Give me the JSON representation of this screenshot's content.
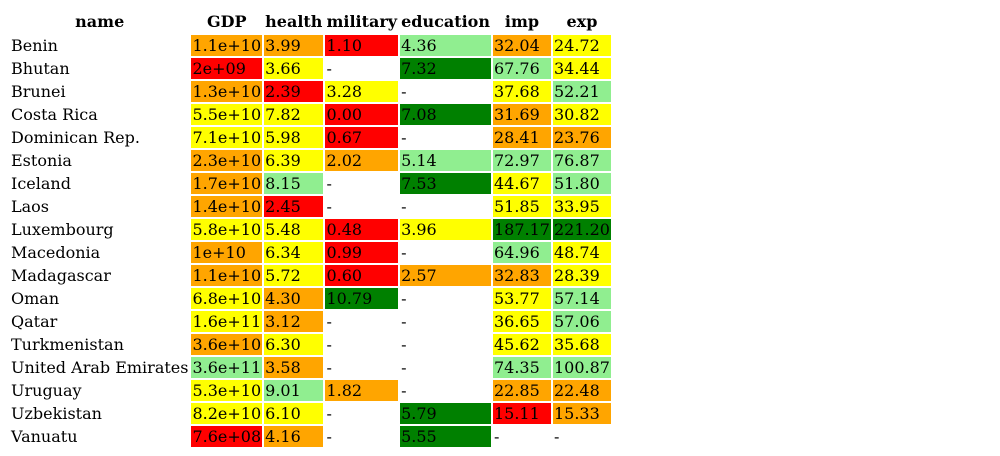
{
  "colors": {
    "red": "#ff0000",
    "orange": "#ffa500",
    "yellow": "#ffff00",
    "lightgreen": "#90ee90",
    "green": "#008000"
  },
  "columns": [
    "name",
    "GDP",
    "health",
    "military",
    "education",
    "imp",
    "exp"
  ],
  "rows": [
    {
      "name": "Benin",
      "cells": [
        [
          "1.1e+10",
          "orange"
        ],
        [
          "3.99",
          "orange"
        ],
        [
          "1.10",
          "red"
        ],
        [
          "4.36",
          "lightgreen"
        ],
        [
          "32.04",
          "orange"
        ],
        [
          "24.72",
          "yellow"
        ]
      ]
    },
    {
      "name": "Bhutan",
      "cells": [
        [
          "2e+09",
          "red"
        ],
        [
          "3.66",
          "yellow"
        ],
        [
          "-",
          "none"
        ],
        [
          "7.32",
          "green"
        ],
        [
          "67.76",
          "lightgreen"
        ],
        [
          "34.44",
          "yellow"
        ]
      ]
    },
    {
      "name": "Brunei",
      "cells": [
        [
          "1.3e+10",
          "orange"
        ],
        [
          "2.39",
          "red"
        ],
        [
          "3.28",
          "yellow"
        ],
        [
          "-",
          "none"
        ],
        [
          "37.68",
          "yellow"
        ],
        [
          "52.21",
          "lightgreen"
        ]
      ]
    },
    {
      "name": "Costa Rica",
      "cells": [
        [
          "5.5e+10",
          "yellow"
        ],
        [
          "7.82",
          "yellow"
        ],
        [
          "0.00",
          "red"
        ],
        [
          "7.08",
          "green"
        ],
        [
          "31.69",
          "orange"
        ],
        [
          "30.82",
          "yellow"
        ]
      ]
    },
    {
      "name": "Dominican Rep.",
      "cells": [
        [
          "7.1e+10",
          "yellow"
        ],
        [
          "5.98",
          "yellow"
        ],
        [
          "0.67",
          "red"
        ],
        [
          "-",
          "none"
        ],
        [
          "28.41",
          "orange"
        ],
        [
          "23.76",
          "orange"
        ]
      ]
    },
    {
      "name": "Estonia",
      "cells": [
        [
          "2.3e+10",
          "orange"
        ],
        [
          "6.39",
          "yellow"
        ],
        [
          "2.02",
          "orange"
        ],
        [
          "5.14",
          "lightgreen"
        ],
        [
          "72.97",
          "lightgreen"
        ],
        [
          "76.87",
          "lightgreen"
        ]
      ]
    },
    {
      "name": "Iceland",
      "cells": [
        [
          "1.7e+10",
          "orange"
        ],
        [
          "8.15",
          "lightgreen"
        ],
        [
          "-",
          "none"
        ],
        [
          "7.53",
          "green"
        ],
        [
          "44.67",
          "yellow"
        ],
        [
          "51.80",
          "lightgreen"
        ]
      ]
    },
    {
      "name": "Laos",
      "cells": [
        [
          "1.4e+10",
          "orange"
        ],
        [
          "2.45",
          "red"
        ],
        [
          "-",
          "none"
        ],
        [
          "-",
          "none"
        ],
        [
          "51.85",
          "yellow"
        ],
        [
          "33.95",
          "yellow"
        ]
      ]
    },
    {
      "name": "Luxembourg",
      "cells": [
        [
          "5.8e+10",
          "yellow"
        ],
        [
          "5.48",
          "yellow"
        ],
        [
          "0.48",
          "red"
        ],
        [
          "3.96",
          "yellow"
        ],
        [
          "187.17",
          "green"
        ],
        [
          "221.20",
          "green"
        ]
      ]
    },
    {
      "name": "Macedonia",
      "cells": [
        [
          "1e+10",
          "orange"
        ],
        [
          "6.34",
          "yellow"
        ],
        [
          "0.99",
          "red"
        ],
        [
          "-",
          "none"
        ],
        [
          "64.96",
          "lightgreen"
        ],
        [
          "48.74",
          "yellow"
        ]
      ]
    },
    {
      "name": "Madagascar",
      "cells": [
        [
          "1.1e+10",
          "orange"
        ],
        [
          "5.72",
          "yellow"
        ],
        [
          "0.60",
          "red"
        ],
        [
          "2.57",
          "orange"
        ],
        [
          "32.83",
          "orange"
        ],
        [
          "28.39",
          "yellow"
        ]
      ]
    },
    {
      "name": "Oman",
      "cells": [
        [
          "6.8e+10",
          "yellow"
        ],
        [
          "4.30",
          "orange"
        ],
        [
          "10.79",
          "green"
        ],
        [
          "-",
          "none"
        ],
        [
          "53.77",
          "yellow"
        ],
        [
          "57.14",
          "lightgreen"
        ]
      ]
    },
    {
      "name": "Qatar",
      "cells": [
        [
          "1.6e+11",
          "yellow"
        ],
        [
          "3.12",
          "orange"
        ],
        [
          "-",
          "none"
        ],
        [
          "-",
          "none"
        ],
        [
          "36.65",
          "yellow"
        ],
        [
          "57.06",
          "lightgreen"
        ]
      ]
    },
    {
      "name": "Turkmenistan",
      "cells": [
        [
          "3.6e+10",
          "orange"
        ],
        [
          "6.30",
          "yellow"
        ],
        [
          "-",
          "none"
        ],
        [
          "-",
          "none"
        ],
        [
          "45.62",
          "yellow"
        ],
        [
          "35.68",
          "yellow"
        ]
      ]
    },
    {
      "name": "United Arab Emirates",
      "cells": [
        [
          "3.6e+11",
          "lightgreen"
        ],
        [
          "3.58",
          "orange"
        ],
        [
          "-",
          "none"
        ],
        [
          "-",
          "none"
        ],
        [
          "74.35",
          "lightgreen"
        ],
        [
          "100.87",
          "lightgreen"
        ]
      ]
    },
    {
      "name": "Uruguay",
      "cells": [
        [
          "5.3e+10",
          "yellow"
        ],
        [
          "9.01",
          "lightgreen"
        ],
        [
          "1.82",
          "orange"
        ],
        [
          "-",
          "none"
        ],
        [
          "22.85",
          "orange"
        ],
        [
          "22.48",
          "orange"
        ]
      ]
    },
    {
      "name": "Uzbekistan",
      "cells": [
        [
          "8.2e+10",
          "yellow"
        ],
        [
          "6.10",
          "yellow"
        ],
        [
          "-",
          "none"
        ],
        [
          "5.79",
          "green"
        ],
        [
          "15.11",
          "red"
        ],
        [
          "15.33",
          "orange"
        ]
      ]
    },
    {
      "name": "Vanuatu",
      "cells": [
        [
          "7.6e+08",
          "red"
        ],
        [
          "4.16",
          "orange"
        ],
        [
          "-",
          "none"
        ],
        [
          "5.55",
          "green"
        ],
        [
          "-",
          "none"
        ],
        [
          "-",
          "none"
        ]
      ]
    }
  ]
}
